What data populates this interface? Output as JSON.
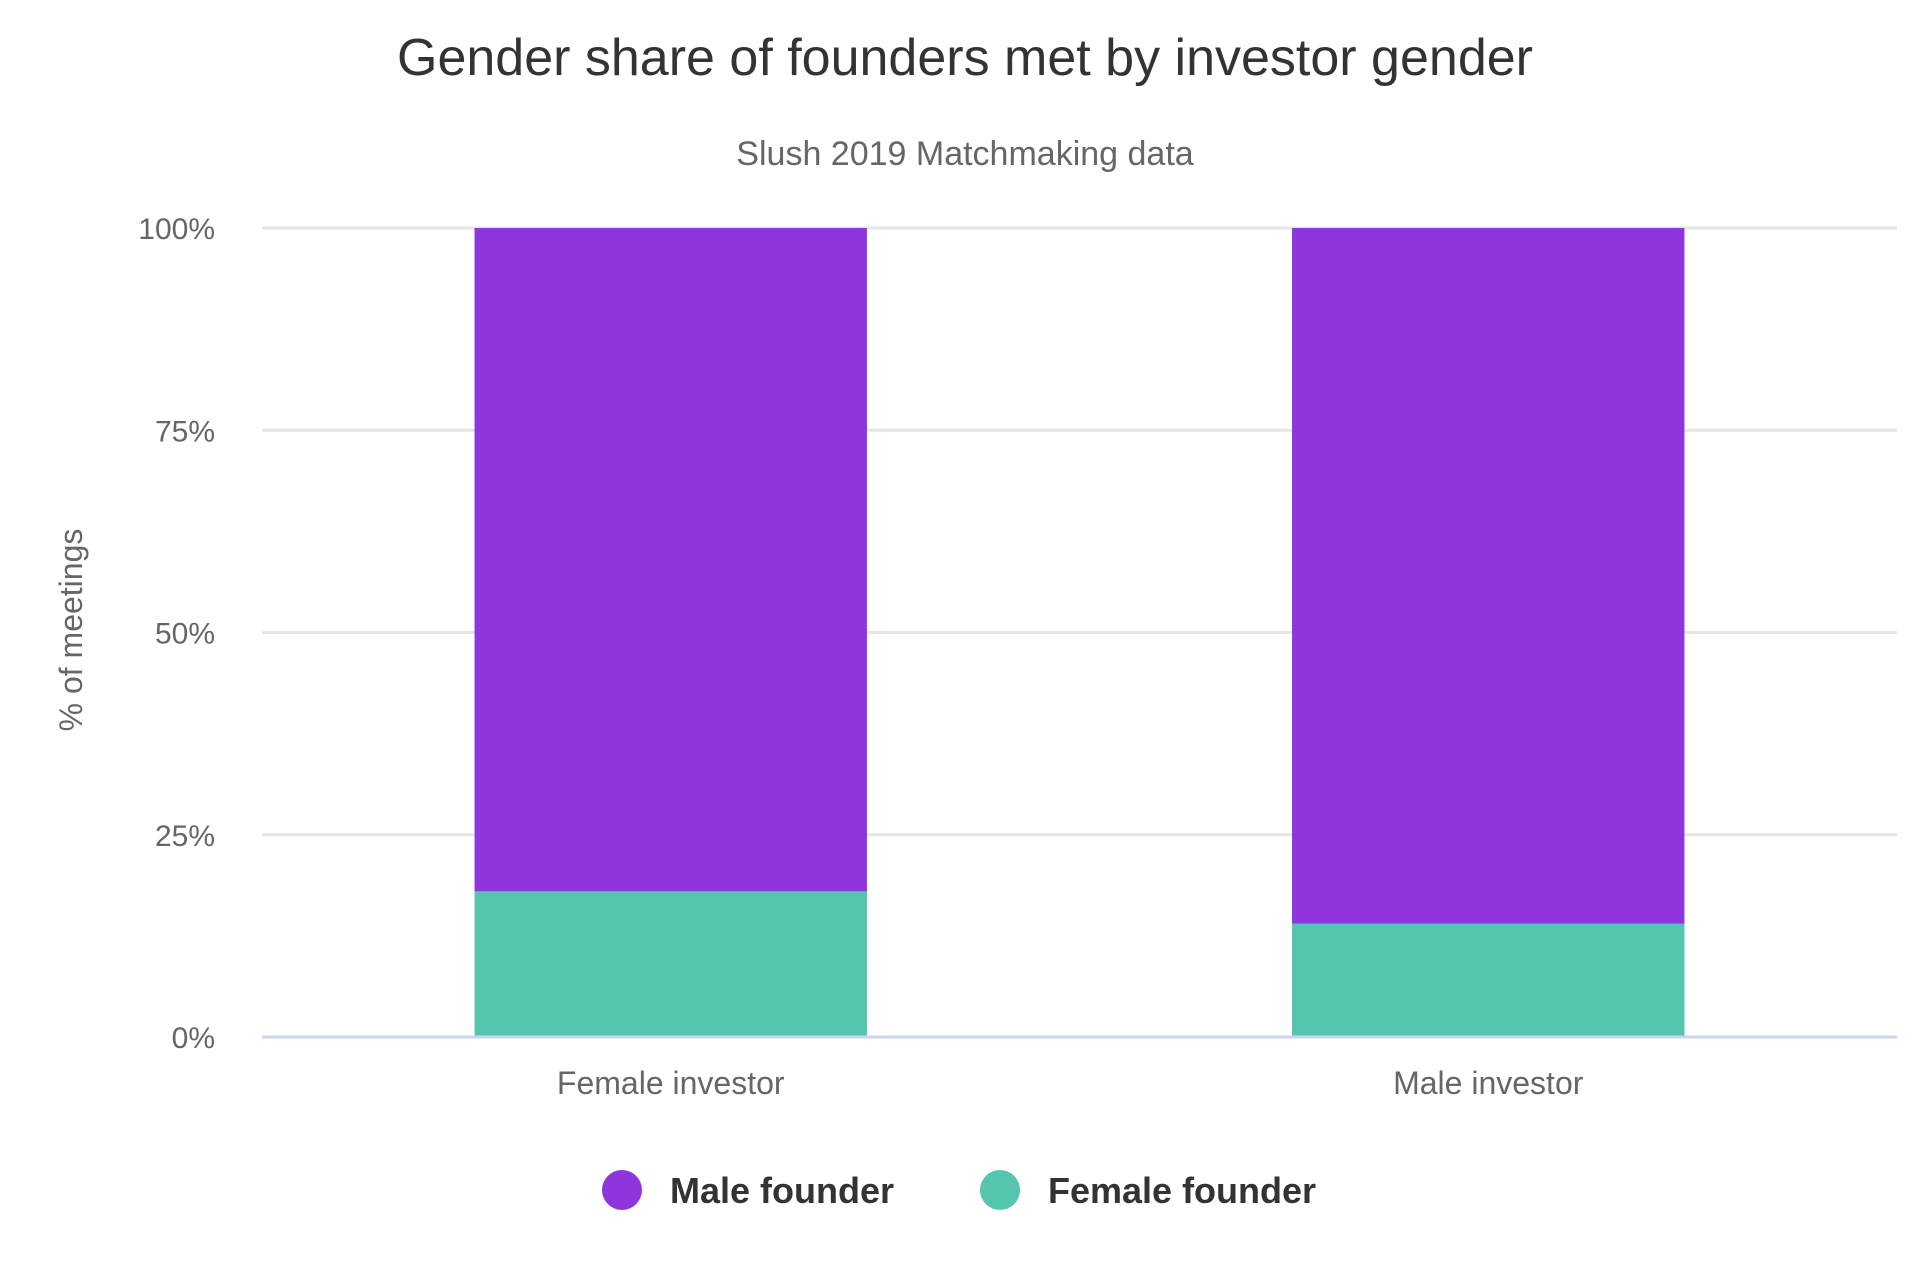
{
  "chart_data": {
    "type": "bar",
    "stacked": true,
    "title": "Gender share of founders met by investor gender",
    "subtitle": "Slush 2019 Matchmaking data",
    "xlabel": "",
    "ylabel": "% of meetings",
    "categories": [
      "Female investor",
      "Male investor"
    ],
    "ylim": [
      0,
      100
    ],
    "y_ticks": [
      0,
      25,
      50,
      75,
      100
    ],
    "y_tick_labels": [
      "0%",
      "25%",
      "50%",
      "75%",
      "100%"
    ],
    "grid": true,
    "legend_position": "bottom-center",
    "series": [
      {
        "name": "Male founder",
        "values": [
          82,
          86
        ],
        "color": "#8e35de"
      },
      {
        "name": "Female founder",
        "values": [
          18,
          14
        ],
        "color": "#55c6ae"
      }
    ]
  }
}
